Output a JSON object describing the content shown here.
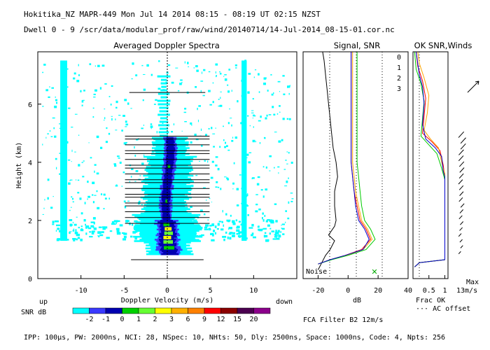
{
  "header": {
    "line1": "Hokitika_NZ  MAPR-449  Mon Jul 14 2014 08:15 - 08:19 UT 02:15 NZST",
    "line2": "Dwell  0 - 9   /scr/data/modular_prof/raw/wind/20140714/14-Jul-2014_08-15-01.cor.nc"
  },
  "footer": "IPP: 100µs,  PW: 2000ns,  NCI: 28,  NSpec: 10, NHts: 50,  Dly: 2500ns,  Space: 1000ns,  Code: 4,  Npts: 256",
  "colors": {
    "scale": [
      "#00ffff",
      "#3a3aff",
      "#0000b0",
      "#00d000",
      "#66ff33",
      "#ffff00",
      "#ffb000",
      "#ff8000",
      "#ff0000",
      "#8b0000",
      "#4b0050",
      "#8b008b"
    ],
    "line0": "#ff0000",
    "line1": "#ffa500",
    "line2": "#00cc00",
    "line3": "#0000cc"
  },
  "chart_data": [
    {
      "type": "heatmap",
      "title": "Averaged Doppler Spectra",
      "xlabel": "Doppler Velocity (m/s)",
      "ylabel": "Height (km)",
      "xlim": [
        -15,
        15
      ],
      "ylim": [
        0,
        7.8
      ],
      "xticks": [
        -10,
        -5,
        0,
        5,
        10
      ],
      "yticks": [
        0,
        2,
        4,
        6
      ],
      "left_label": "up",
      "right_label": "down",
      "profile": [
        {
          "h": 0.85,
          "v": 0.3
        },
        {
          "h": 1.2,
          "v": 0.0
        },
        {
          "h": 1.6,
          "v": 0.1
        },
        {
          "h": 2.0,
          "v": -0.1
        },
        {
          "h": 2.5,
          "v": -0.2
        },
        {
          "h": 3.0,
          "v": -0.1
        },
        {
          "h": 3.5,
          "v": 0.1
        },
        {
          "h": 4.0,
          "v": 0.3
        },
        {
          "h": 4.5,
          "v": 0.4
        },
        {
          "h": 4.8,
          "v": 0.3
        }
      ],
      "peak_heights": [
        0.65,
        1.9,
        2.1,
        2.3,
        2.5,
        2.6,
        2.8,
        2.9,
        3.1,
        3.3,
        3.4,
        3.6,
        3.8,
        3.9,
        4.1,
        4.3,
        4.4,
        4.6,
        4.8,
        4.9,
        6.4
      ]
    },
    {
      "type": "line",
      "title": "Signal, SNR",
      "xlabel": "dB",
      "xlim": [
        -30,
        40
      ],
      "xticks": [
        -20,
        0,
        20,
        40
      ],
      "noise_label": "Noise",
      "series": [
        {
          "name": "noise",
          "points": [
            [
              -20,
              0.3
            ],
            [
              -18,
              0.5
            ],
            [
              -15,
              0.8
            ],
            [
              -12,
              1.0
            ],
            [
              -9,
              1.3
            ],
            [
              -13,
              1.5
            ],
            [
              -9,
              1.8
            ],
            [
              -8,
              2.0
            ],
            [
              -9,
              2.5
            ],
            [
              -9,
              3.0
            ],
            [
              -7,
              3.5
            ],
            [
              -8,
              4.0
            ],
            [
              -10,
              4.5
            ],
            [
              -11,
              5.0
            ],
            [
              -12,
              5.5
            ],
            [
              -13,
              6.0
            ],
            [
              -14,
              6.5
            ],
            [
              -15,
              7.0
            ],
            [
              -16,
              7.5
            ],
            [
              -17,
              7.8
            ]
          ]
        },
        {
          "name": "0",
          "points": [
            [
              -20,
              0.5
            ],
            [
              -12,
              0.65
            ],
            [
              -2,
              0.8
            ],
            [
              9,
              1.0
            ],
            [
              15,
              1.35
            ],
            [
              12,
              1.7
            ],
            [
              8,
              2.0
            ],
            [
              6,
              2.5
            ],
            [
              4,
              3.0
            ],
            [
              3,
              3.5
            ],
            [
              2,
              4.0
            ],
            [
              2,
              5.0
            ],
            [
              2,
              6.0
            ],
            [
              2,
              7.8
            ]
          ]
        },
        {
          "name": "1",
          "points": [
            [
              -20,
              0.5
            ],
            [
              -12,
              0.65
            ],
            [
              -1,
              0.8
            ],
            [
              10,
              1.0
            ],
            [
              16,
              1.35
            ],
            [
              13,
              1.7
            ],
            [
              9,
              2.0
            ],
            [
              7,
              2.5
            ],
            [
              5,
              3.0
            ],
            [
              4,
              3.5
            ],
            [
              3,
              4.0
            ],
            [
              3,
              5.0
            ],
            [
              3,
              6.0
            ],
            [
              3,
              7.8
            ]
          ]
        },
        {
          "name": "2",
          "points": [
            [
              -20,
              0.5
            ],
            [
              -11,
              0.65
            ],
            [
              0,
              0.8
            ],
            [
              12,
              1.0
            ],
            [
              18,
              1.35
            ],
            [
              15,
              1.7
            ],
            [
              11,
              2.0
            ],
            [
              9,
              2.5
            ],
            [
              8,
              3.0
            ],
            [
              7,
              3.5
            ],
            [
              6,
              4.0
            ],
            [
              6,
              5.0
            ],
            [
              6,
              6.0
            ],
            [
              6,
              7.8
            ]
          ]
        },
        {
          "name": "3",
          "points": [
            [
              -20,
              0.5
            ],
            [
              -12,
              0.65
            ],
            [
              -2,
              0.8
            ],
            [
              10,
              1.0
            ],
            [
              14,
              1.35
            ],
            [
              11,
              1.7
            ],
            [
              7,
              2.0
            ],
            [
              5,
              2.5
            ],
            [
              4,
              3.0
            ],
            [
              3,
              3.5
            ],
            [
              2,
              4.0
            ],
            [
              2,
              5.0
            ],
            [
              2,
              6.0
            ],
            [
              2,
              7.8
            ]
          ]
        }
      ]
    },
    {
      "type": "line",
      "title": "OK SNR,Winds",
      "xlim": [
        0,
        1.1
      ],
      "xticks": [
        0.5,
        1
      ],
      "tick_labels": [
        "0.5",
        "1"
      ],
      "xlabel": "Frac OK",
      "note": "AC offset",
      "legend": [
        "0",
        "1",
        "2",
        "3"
      ],
      "max_label_1": "Max",
      "max_label_2": "13m/s",
      "filter_label": "FCA Filter B2 12m/s",
      "series": [
        {
          "name": "0",
          "points": [
            [
              0.05,
              0.4
            ],
            [
              0.2,
              0.55
            ],
            [
              1.0,
              0.65
            ],
            [
              1.0,
              3.5
            ],
            [
              0.95,
              3.9
            ],
            [
              0.85,
              4.4
            ],
            [
              0.6,
              4.7
            ],
            [
              0.3,
              5.0
            ],
            [
              0.35,
              5.6
            ],
            [
              0.4,
              6.2
            ],
            [
              0.3,
              6.8
            ],
            [
              0.15,
              7.3
            ],
            [
              0.1,
              7.8
            ]
          ]
        },
        {
          "name": "1",
          "points": [
            [
              0.05,
              0.4
            ],
            [
              0.2,
              0.55
            ],
            [
              1.0,
              0.65
            ],
            [
              1.0,
              3.6
            ],
            [
              0.9,
              4.0
            ],
            [
              0.8,
              4.5
            ],
            [
              0.55,
              4.8
            ],
            [
              0.35,
              5.1
            ],
            [
              0.45,
              5.7
            ],
            [
              0.5,
              6.3
            ],
            [
              0.35,
              6.9
            ],
            [
              0.2,
              7.4
            ],
            [
              0.15,
              7.8
            ]
          ]
        },
        {
          "name": "2",
          "points": [
            [
              0.05,
              0.4
            ],
            [
              0.2,
              0.55
            ],
            [
              1.0,
              0.65
            ],
            [
              1.0,
              3.4
            ],
            [
              0.9,
              3.8
            ],
            [
              0.75,
              4.3
            ],
            [
              0.5,
              4.6
            ],
            [
              0.25,
              4.9
            ],
            [
              0.3,
              5.5
            ],
            [
              0.35,
              6.1
            ],
            [
              0.25,
              6.7
            ],
            [
              0.1,
              7.2
            ],
            [
              0.05,
              7.8
            ]
          ]
        },
        {
          "name": "3",
          "points": [
            [
              0.05,
              0.4
            ],
            [
              0.2,
              0.55
            ],
            [
              1.0,
              0.65
            ],
            [
              1.0,
              3.5
            ],
            [
              0.95,
              3.7
            ],
            [
              0.9,
              4.2
            ],
            [
              0.7,
              4.5
            ],
            [
              0.4,
              4.8
            ],
            [
              0.3,
              5.3
            ],
            [
              0.35,
              6.0
            ],
            [
              0.3,
              6.6
            ],
            [
              0.2,
              7.0
            ],
            [
              0.1,
              7.8
            ]
          ]
        }
      ]
    },
    {
      "type": "table",
      "title": "SNR dB",
      "values": [
        "-2",
        "-1",
        "0",
        "1",
        "2",
        "3",
        "6",
        "9",
        "12",
        "15",
        "20"
      ]
    }
  ]
}
